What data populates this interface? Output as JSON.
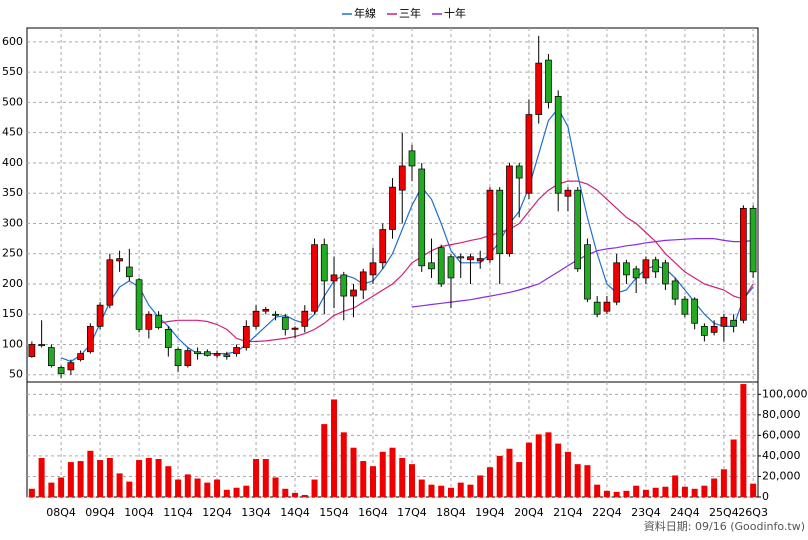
{
  "chart_data": {
    "type": "candlestick",
    "categories": [
      null,
      null,
      null,
      "08Q4",
      null,
      null,
      null,
      "09Q4",
      null,
      null,
      null,
      "10Q4",
      null,
      null,
      null,
      "11Q4",
      null,
      null,
      null,
      "12Q4",
      null,
      null,
      null,
      "13Q4",
      null,
      null,
      null,
      "14Q4",
      null,
      null,
      null,
      "15Q4",
      null,
      null,
      null,
      "16Q4",
      null,
      null,
      null,
      "17Q4",
      null,
      null,
      null,
      "18Q4",
      null,
      null,
      null,
      "19Q4",
      null,
      null,
      null,
      "20Q4",
      null,
      null,
      null,
      "21Q4",
      null,
      null,
      null,
      "22Q4",
      null,
      null,
      null,
      "23Q4",
      null,
      null,
      null,
      "24Q4",
      null,
      null,
      null,
      "25Q4",
      null,
      null,
      "26Q3"
    ],
    "open": [
      80,
      100,
      95,
      62,
      58,
      75,
      88,
      130,
      165,
      238,
      228,
      207,
      125,
      148,
      125,
      92,
      65,
      88,
      88,
      82,
      83,
      85,
      95,
      130,
      155,
      150,
      145,
      125,
      130,
      155,
      265,
      205,
      215,
      180,
      190,
      215,
      235,
      290,
      355,
      420,
      390,
      235,
      260,
      245,
      245,
      240,
      238,
      240,
      355,
      250,
      395,
      350,
      480,
      570,
      510,
      345,
      355,
      265,
      170,
      155,
      170,
      235,
      225,
      210,
      240,
      235,
      205,
      175,
      175,
      130,
      120,
      130,
      140,
      140,
      325
    ],
    "high": [
      105,
      140,
      100,
      65,
      75,
      90,
      135,
      170,
      250,
      255,
      258,
      210,
      155,
      155,
      130,
      95,
      95,
      95,
      92,
      90,
      88,
      100,
      140,
      165,
      162,
      155,
      150,
      130,
      165,
      275,
      275,
      245,
      220,
      200,
      225,
      260,
      300,
      375,
      450,
      430,
      400,
      275,
      265,
      250,
      250,
      250,
      255,
      360,
      360,
      400,
      400,
      505,
      610,
      580,
      520,
      360,
      360,
      275,
      180,
      180,
      250,
      240,
      230,
      245,
      245,
      240,
      210,
      180,
      178,
      135,
      140,
      150,
      150,
      330,
      330
    ],
    "low": [
      78,
      95,
      62,
      45,
      50,
      72,
      85,
      125,
      160,
      220,
      205,
      120,
      110,
      125,
      80,
      55,
      62,
      75,
      80,
      78,
      75,
      80,
      90,
      125,
      150,
      140,
      115,
      110,
      120,
      150,
      150,
      160,
      140,
      145,
      175,
      200,
      225,
      275,
      300,
      370,
      220,
      210,
      195,
      160,
      210,
      200,
      225,
      235,
      200,
      245,
      310,
      340,
      465,
      490,
      320,
      320,
      220,
      170,
      145,
      150,
      165,
      200,
      185,
      200,
      210,
      190,
      165,
      145,
      125,
      105,
      115,
      105,
      120,
      135,
      210
    ],
    "close": [
      100,
      98,
      65,
      52,
      70,
      85,
      130,
      165,
      240,
      242,
      212,
      125,
      150,
      128,
      95,
      65,
      90,
      85,
      82,
      85,
      80,
      95,
      130,
      155,
      158,
      148,
      125,
      127,
      155,
      265,
      205,
      215,
      180,
      190,
      220,
      235,
      290,
      360,
      395,
      395,
      230,
      225,
      200,
      210,
      243,
      245,
      242,
      355,
      250,
      395,
      375,
      480,
      565,
      500,
      350,
      355,
      225,
      175,
      150,
      170,
      235,
      215,
      210,
      240,
      220,
      200,
      175,
      150,
      135,
      115,
      130,
      145,
      130,
      325,
      220
    ],
    "up_color": "#ee0000",
    "down_color": "#22aa22",
    "ylim": [
      38,
      623
    ],
    "yticks": [
      50,
      100,
      150,
      200,
      250,
      300,
      350,
      400,
      450,
      500,
      550,
      600
    ],
    "grid": true,
    "legend": "top",
    "series": [
      {
        "name": "年線",
        "color": "#1f6fd0",
        "values": [
          null,
          null,
          null,
          78,
          72,
          82,
          100,
          135,
          170,
          195,
          205,
          195,
          165,
          145,
          130,
          110,
          95,
          85,
          85,
          85,
          85,
          88,
          100,
          115,
          130,
          145,
          148,
          140,
          135,
          150,
          180,
          205,
          215,
          210,
          200,
          205,
          225,
          250,
          290,
          330,
          360,
          340,
          300,
          255,
          235,
          235,
          235,
          250,
          270,
          300,
          320,
          360,
          415,
          470,
          490,
          460,
          380,
          310,
          250,
          200,
          185,
          190,
          210,
          225,
          230,
          225,
          210,
          190,
          170,
          150,
          135,
          130,
          130,
          175,
          195
        ]
      },
      {
        "name": "三年",
        "color": "#d0207a",
        "values": [
          null,
          null,
          null,
          null,
          null,
          null,
          null,
          null,
          null,
          null,
          null,
          null,
          null,
          135,
          138,
          140,
          140,
          140,
          138,
          133,
          125,
          110,
          105,
          105,
          106,
          108,
          110,
          113,
          118,
          125,
          135,
          148,
          155,
          160,
          170,
          180,
          190,
          200,
          215,
          235,
          245,
          255,
          262,
          265,
          268,
          272,
          275,
          280,
          285,
          290,
          300,
          320,
          340,
          355,
          365,
          370,
          370,
          365,
          355,
          340,
          325,
          310,
          300,
          285,
          270,
          250,
          235,
          220,
          210,
          200,
          195,
          190,
          180,
          175,
          200
        ]
      },
      {
        "name": "十年",
        "color": "#8a2be2",
        "values": [
          null,
          null,
          null,
          null,
          null,
          null,
          null,
          null,
          null,
          null,
          null,
          null,
          null,
          null,
          null,
          null,
          null,
          null,
          null,
          null,
          null,
          null,
          null,
          null,
          null,
          null,
          null,
          null,
          null,
          null,
          null,
          null,
          null,
          null,
          null,
          null,
          null,
          null,
          null,
          162,
          164,
          166,
          168,
          170,
          172,
          174,
          177,
          180,
          183,
          186,
          190,
          195,
          200,
          210,
          220,
          230,
          240,
          248,
          255,
          258,
          260,
          263,
          265,
          268,
          270,
          272,
          273,
          274,
          275,
          275,
          275,
          272,
          270,
          270,
          272
        ]
      }
    ],
    "volume": {
      "color": "#ee0000",
      "ylim": [
        0,
        112000
      ],
      "yticks": [
        0,
        {
          "value": 20000,
          "label": "20,000"
        },
        {
          "value": 40000,
          "label": "40,000"
        },
        {
          "value": 60000,
          "label": "60,000"
        },
        {
          "value": 80000,
          "label": "80,000"
        },
        {
          "value": 100000,
          "label": "100,000"
        }
      ],
      "values": [
        8000,
        38000,
        14000,
        19000,
        34000,
        35000,
        45000,
        36000,
        38000,
        23000,
        15000,
        36000,
        38000,
        37000,
        30000,
        17000,
        22000,
        18000,
        14000,
        17000,
        7000,
        9000,
        11000,
        37000,
        37000,
        19000,
        8000,
        4000,
        2000,
        17000,
        71000,
        95000,
        63000,
        48000,
        35000,
        30000,
        44000,
        48000,
        38000,
        32000,
        17000,
        12000,
        11000,
        9000,
        14000,
        12000,
        21000,
        29000,
        40000,
        47000,
        34000,
        53000,
        61000,
        63000,
        52000,
        44000,
        32000,
        31000,
        12000,
        6000,
        5000,
        6000,
        11000,
        7000,
        9000,
        10000,
        21000,
        10000,
        8000,
        11000,
        18000,
        27000,
        56000,
        110000,
        13000
      ]
    }
  },
  "footer": "資料日期: 09/16 (Goodinfo.tw)"
}
